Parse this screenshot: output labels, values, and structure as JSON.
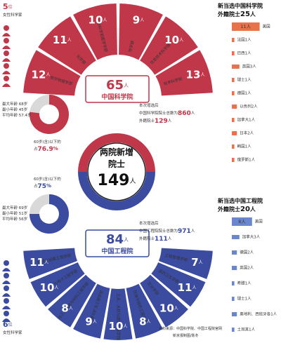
{
  "units": {
    "person": "人",
    "female": "位",
    "percent": "%"
  },
  "center": {
    "line1": "两院新增",
    "line2": "院士",
    "total": 149
  },
  "cas": {
    "name": "中国科学院",
    "total": 65,
    "female": {
      "count": 5,
      "label": "女性科学家"
    },
    "divisions": [
      {
        "name": "数学物理学部",
        "count": 12
      },
      {
        "name": "化学部",
        "count": 11
      },
      {
        "name": "生命科学和医学学部",
        "count": 10
      },
      {
        "name": "地学部",
        "count": 9
      },
      {
        "name": "信息技术科学部",
        "count": 10
      },
      {
        "name": "技术科学部",
        "count": 13
      }
    ],
    "summary": {
      "line1": "本次增选后",
      "line2": "中国科学院院士总数为",
      "total": 860,
      "line3": "外籍院士",
      "foreign": 129
    },
    "age": {
      "max": "最大年龄 68岁",
      "min": "最小年龄 45岁",
      "avg": "平均年龄 57.4岁",
      "share_label": "60岁(含)以下的",
      "share_prefix": "占",
      "share": 76.9
    },
    "foreign": {
      "title1": "新当选中国科学院",
      "title2": "外籍院士",
      "total": 25,
      "rows": [
        {
          "label": "美国",
          "value": 11,
          "value_label": "11人"
        },
        {
          "label": "法国1人",
          "value": 1
        },
        {
          "label": "巴西1人",
          "value": 1
        },
        {
          "label": "英国3人",
          "value": 3
        },
        {
          "label": "瑞士1人",
          "value": 1
        },
        {
          "label": "德国1人",
          "value": 1
        },
        {
          "label": "以色列2人",
          "value": 2
        },
        {
          "label": "加拿大1人",
          "value": 1
        },
        {
          "label": "日本2人",
          "value": 2
        },
        {
          "label": "韩国1人",
          "value": 1
        },
        {
          "label": "俄罗斯1人",
          "value": 1
        }
      ]
    }
  },
  "cae": {
    "name": "中国工程院",
    "total": 84,
    "female": {
      "count": 6,
      "label": "女性科学家"
    },
    "divisions": [
      {
        "name": "机械与运载工程学部",
        "count": 11
      },
      {
        "name": "信息与电子工程学部",
        "count": 10
      },
      {
        "name": "化工、冶金与材料工程学部",
        "count": 8
      },
      {
        "name": "能源与矿业工程学部",
        "count": 9
      },
      {
        "name": "土木、水利与建筑工程学部",
        "count": 10
      },
      {
        "name": "环境与轻纺工程学部",
        "count": 8
      },
      {
        "name": "农业学部",
        "count": 10
      },
      {
        "name": "医药卫生学部",
        "count": 11
      },
      {
        "name": "工程管理学部",
        "count": 7
      }
    ],
    "summary": {
      "line1": "本次增选后",
      "line2": "中国工程院院士总数为",
      "total": 971,
      "line3": "外籍院士",
      "foreign": 111
    },
    "age": {
      "max": "最大年龄 69岁",
      "min": "最小年龄 51岁",
      "avg": "平均年龄 56岁",
      "share_label": "60岁(含)以下的",
      "share_prefix": "占",
      "share": 75
    },
    "foreign": {
      "title1": "新当选中国工程院",
      "title2": "外籍院士",
      "total": 20,
      "rows": [
        {
          "label": "美国",
          "value": 8,
          "value_label": "8人"
        },
        {
          "label": "加拿大3人",
          "value": 3
        },
        {
          "label": "德国2人",
          "value": 2
        },
        {
          "label": "英国2人",
          "value": 2
        },
        {
          "label": "希腊1人",
          "value": 1
        },
        {
          "label": "瑞士1人",
          "value": 1
        },
        {
          "label": "奥地利、西班牙各1人",
          "value": 2
        },
        {
          "label": "土耳其1人",
          "value": 1
        }
      ]
    }
  },
  "source": {
    "line1": "资料来源：中国科学院、中国工程院官网",
    "line2": "新京报制图/陈冬"
  }
}
